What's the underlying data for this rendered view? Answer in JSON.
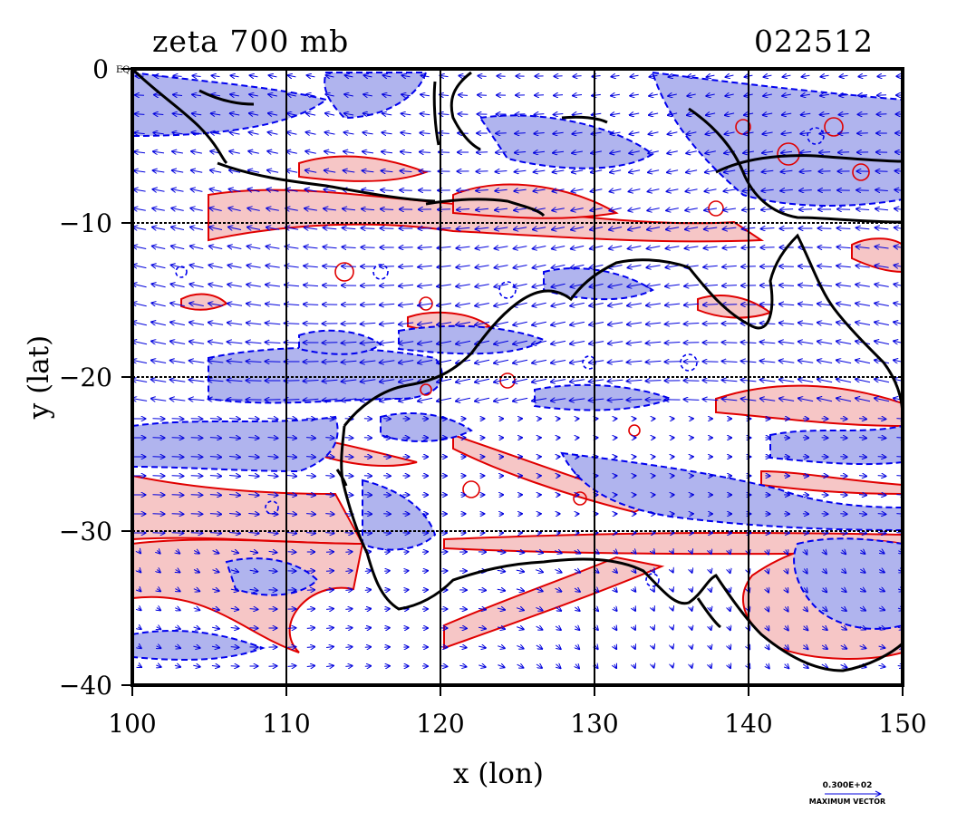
{
  "title_left": "zeta 700 mb",
  "title_right": "022512",
  "x_axis": {
    "label": "x (lon)",
    "ticks": [
      "100",
      "110",
      "120",
      "130",
      "140",
      "150"
    ],
    "range": [
      100,
      150
    ]
  },
  "y_axis": {
    "label": "y (lat)",
    "ticks": [
      "0",
      "−10",
      "−20",
      "−30",
      "−40"
    ],
    "range": [
      -40,
      0
    ]
  },
  "equator_tag": "EQ",
  "legend": {
    "value": "0.300E+02",
    "caption": "MAXIMUM VECTOR"
  },
  "colors": {
    "positive_fill": "#f6c6c6",
    "positive_line": "#e00000",
    "negative_fill": "#b0b4ee",
    "negative_line": "#0000ee",
    "vector": "#0000dd",
    "coast": "#000000",
    "grid": "#000000"
  }
}
